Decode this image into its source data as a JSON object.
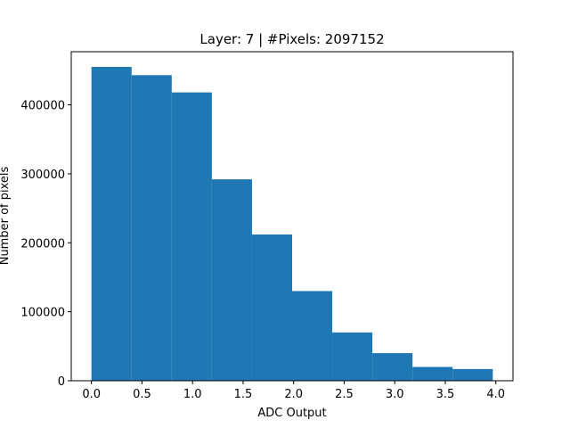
{
  "chart_data": {
    "type": "bar",
    "title": "Layer: 7 | #Pixels: 2097152",
    "xlabel": "ADC Output",
    "ylabel": "Number of pixels",
    "bin_edges": [
      0.0,
      0.397,
      0.794,
      1.191,
      1.588,
      1.985,
      2.382,
      2.779,
      3.176,
      3.573,
      3.97
    ],
    "values": [
      455000,
      443000,
      418000,
      292000,
      212000,
      130000,
      70000,
      40000,
      20000,
      17000
    ],
    "xlim": [
      -0.2,
      4.17
    ],
    "ylim": [
      0,
      477000
    ],
    "xticks": [
      0.0,
      0.5,
      1.0,
      1.5,
      2.0,
      2.5,
      3.0,
      3.5,
      4.0
    ],
    "xtick_labels": [
      "0.0",
      "0.5",
      "1.0",
      "1.5",
      "2.0",
      "2.5",
      "3.0",
      "3.5",
      "4.0"
    ],
    "yticks": [
      0,
      100000,
      200000,
      300000,
      400000
    ],
    "ytick_labels": [
      "0",
      "100000",
      "200000",
      "300000",
      "400000"
    ],
    "bar_color": "#1f77b4",
    "grid": false,
    "legend": "none"
  }
}
